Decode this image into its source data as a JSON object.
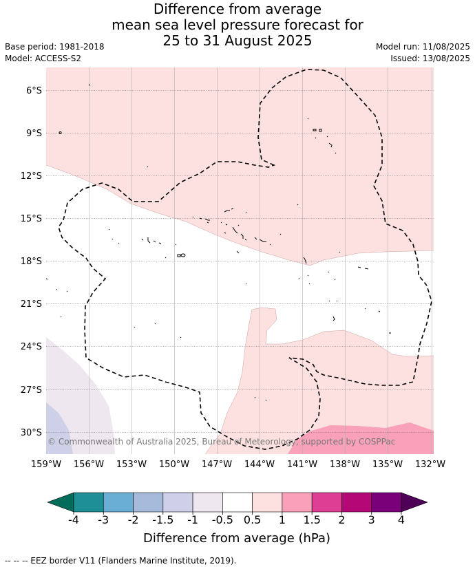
{
  "title_lines": [
    "Difference from average",
    "mean sea level pressure forecast for",
    "25 to 31 August 2025"
  ],
  "base_period": "Base period: 1981-2018",
  "model": "Model: ACCESS-S2",
  "model_run": "Model run: 11/08/2025",
  "issued": "Issued: 13/08/2025",
  "copyright": "© Commonwealth of Australia 2025, Bureau of Meteorology, supported by COSPPac",
  "lat_labels": [
    "6°S",
    "9°S",
    "12°S",
    "15°S",
    "18°S",
    "21°S",
    "24°S",
    "27°S",
    "30°S"
  ],
  "lon_labels": [
    "159°W",
    "156°W",
    "153°W",
    "150°W",
    "147°W",
    "144°W",
    "141°W",
    "138°W",
    "135°W",
    "132°W"
  ],
  "colorbar": {
    "title": "Difference from average (hPa)",
    "ticks": [
      "-4",
      "-3",
      "-2",
      "-1.5",
      "-1",
      "-0.5",
      "0.5",
      "1",
      "1.5",
      "2",
      "3",
      "4"
    ],
    "colors": [
      "#1e8f94",
      "#6aaed6",
      "#a6badb",
      "#cdd0e6",
      "#efe7ef",
      "#ffffff",
      "#fde0e0",
      "#f8a1b9",
      "#df3e95",
      "#b30875",
      "#790079"
    ],
    "low_extend_color": "#016c59",
    "high_extend_color": "#4d0056"
  },
  "footnote": "-- -- -- EEZ border V11 (Flanders Marine Institute, 2019)."
}
